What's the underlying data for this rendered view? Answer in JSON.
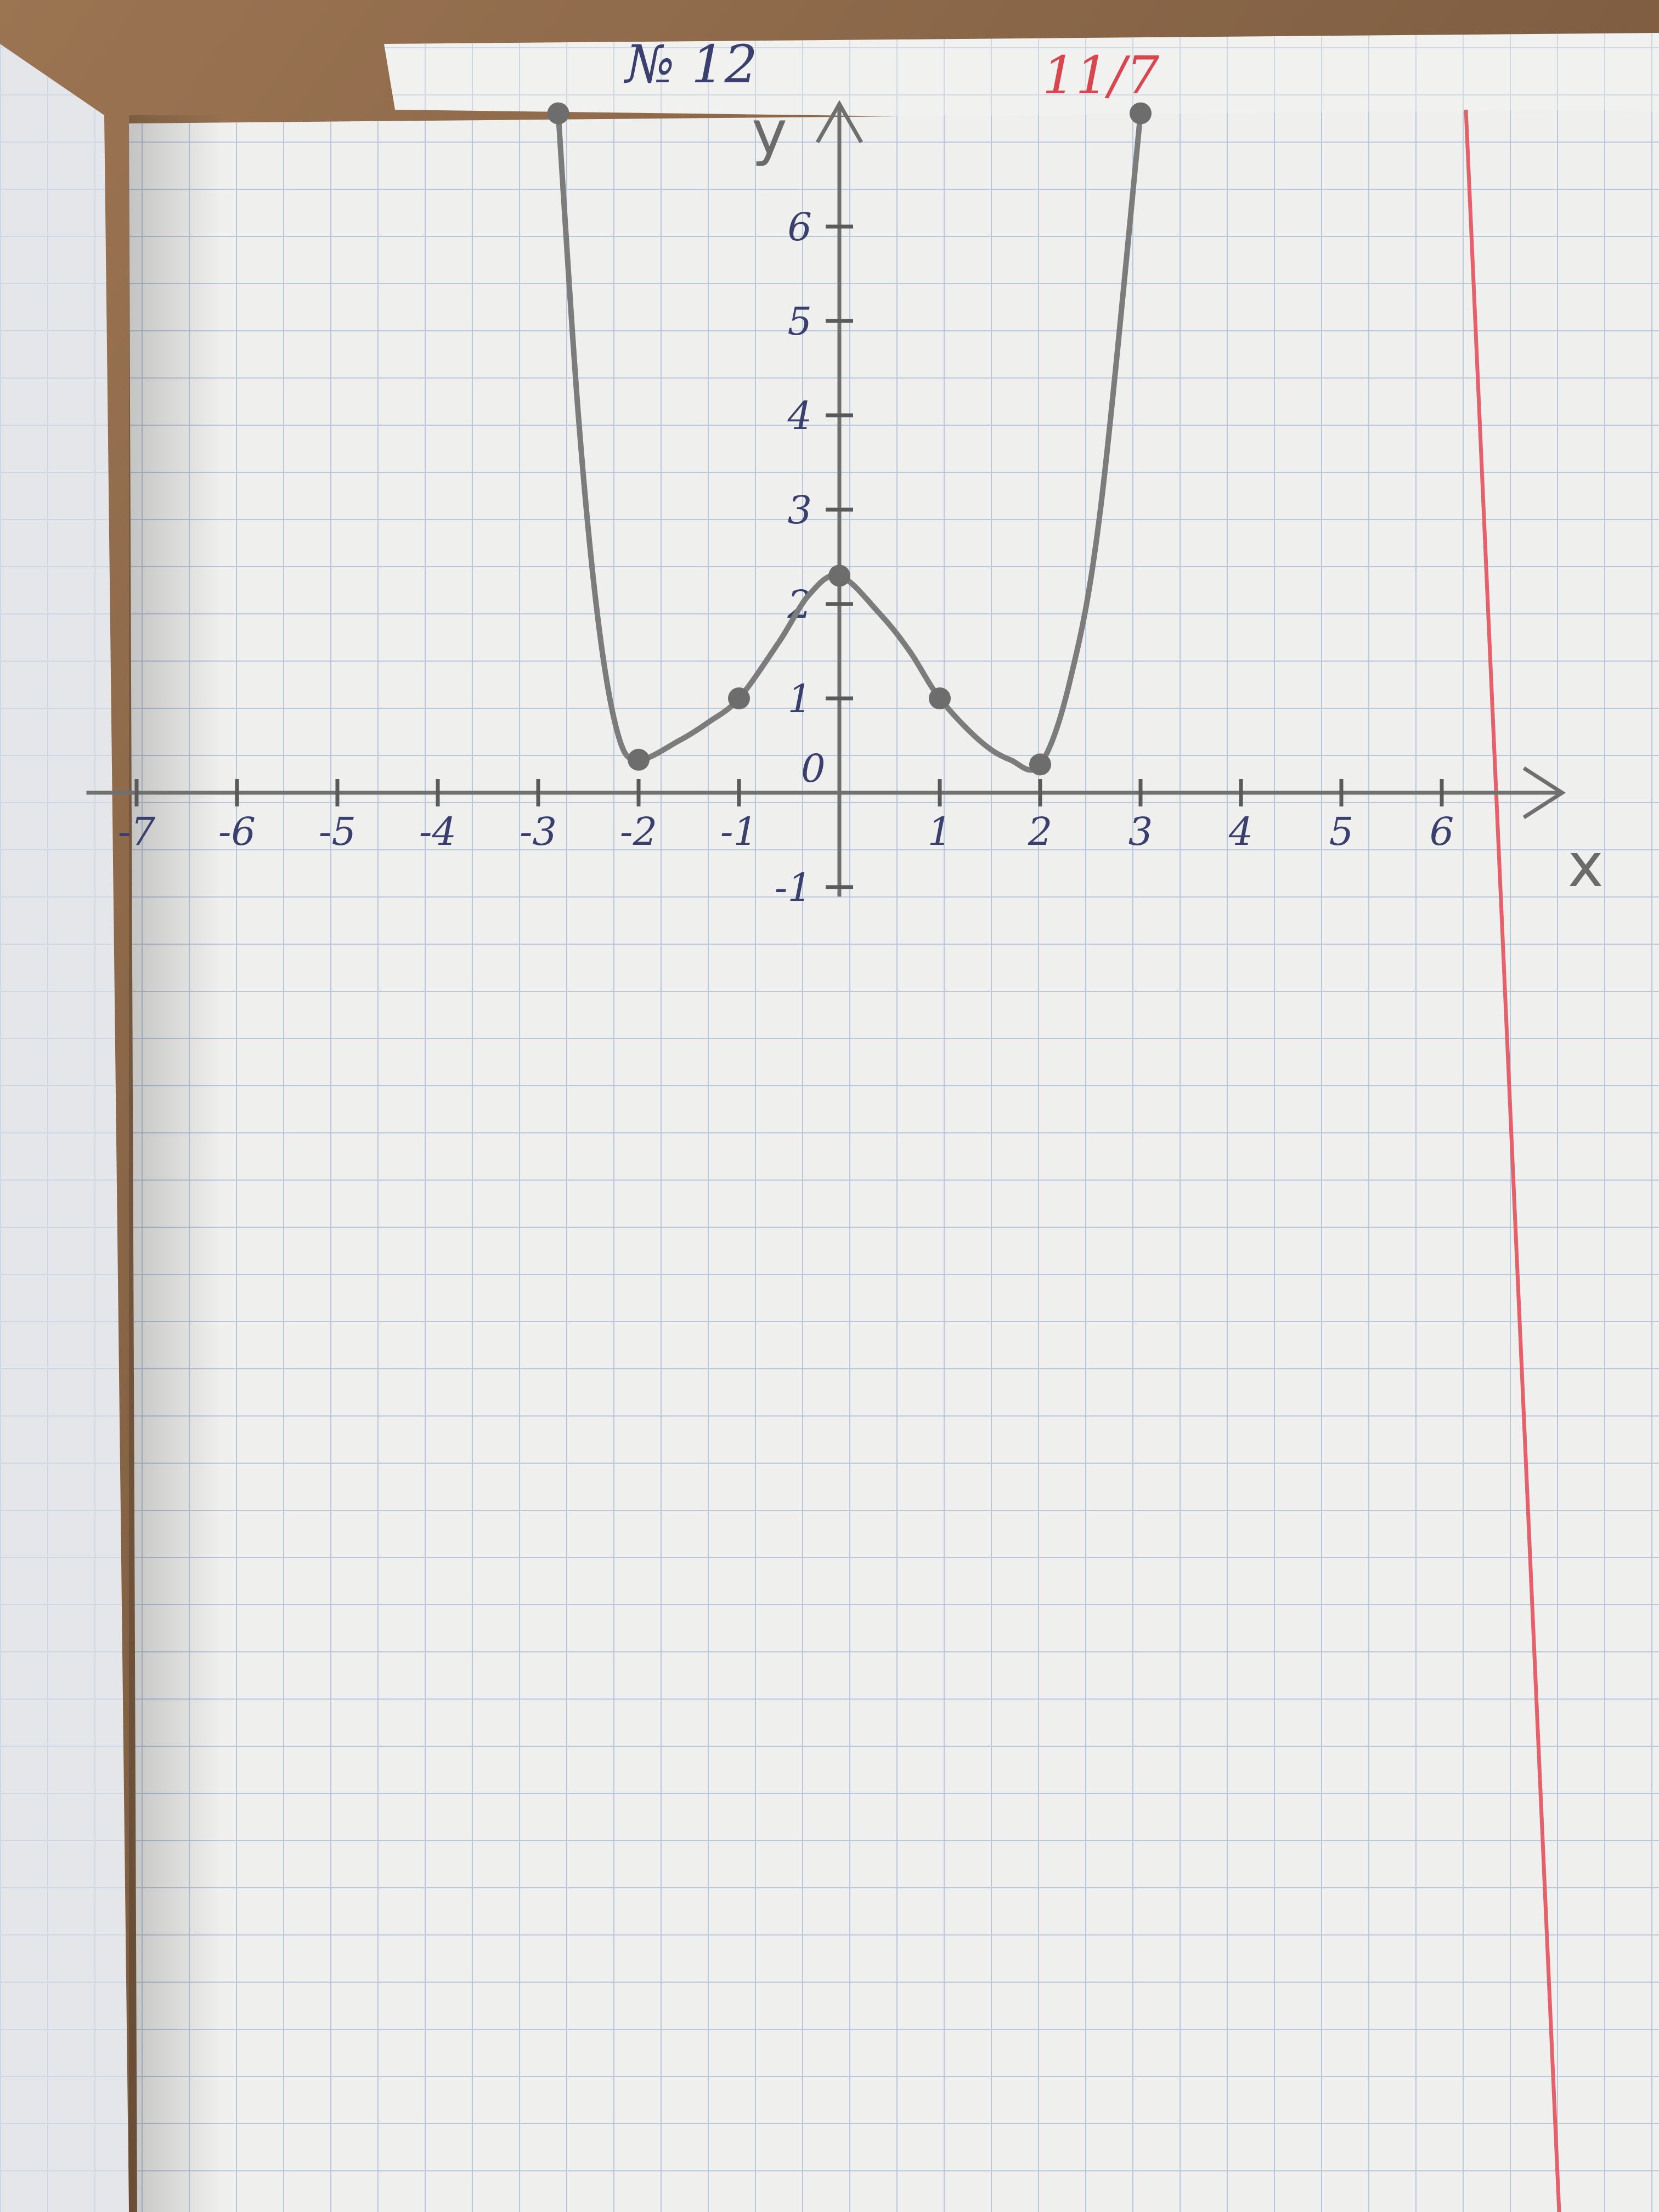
{
  "header": {
    "left_mark": "№ 12",
    "right_mark": "11/7"
  },
  "chart_data": {
    "type": "line",
    "title": "",
    "xlabel": "x",
    "ylabel": "y",
    "origin_label": "0",
    "xlim": [
      -7,
      6
    ],
    "ylim": [
      -1,
      7
    ],
    "grid": true,
    "x_ticks": [
      -7,
      -6,
      -5,
      -4,
      -3,
      -2,
      -1,
      1,
      2,
      3,
      4,
      5,
      6
    ],
    "x_tick_labels": [
      "-7",
      "-6",
      "-5",
      "-4",
      "-3",
      "-2",
      "-1",
      "1",
      "2",
      "3",
      "4",
      "5",
      "6"
    ],
    "y_ticks": [
      -1,
      1,
      2,
      3,
      4,
      5,
      6
    ],
    "y_tick_labels": [
      "-1",
      "1",
      "2",
      "3",
      "4",
      "5",
      "6"
    ],
    "series": [
      {
        "x": [
          -2.8,
          -2.6,
          -2.4,
          -2.2,
          -2,
          -1.6,
          -1.3,
          -1,
          -0.6,
          -0.3,
          0,
          0.4,
          0.7,
          1,
          1.4,
          1.7,
          2,
          2.3,
          2.6,
          3
        ],
        "y": [
          7.2,
          4.0,
          1.8,
          0.6,
          0.35,
          0.55,
          0.75,
          1.0,
          1.6,
          2.1,
          2.3,
          1.9,
          1.5,
          1.0,
          0.55,
          0.35,
          0.3,
          1.2,
          3.0,
          7.2
        ],
        "color": "#7c7c7c"
      }
    ],
    "marked_points": [
      {
        "x": -2.8,
        "y": 7.2
      },
      {
        "x": -2,
        "y": 0.35
      },
      {
        "x": -1,
        "y": 1
      },
      {
        "x": 0,
        "y": 2.3
      },
      {
        "x": 1,
        "y": 1
      },
      {
        "x": 2,
        "y": 0.3
      },
      {
        "x": 3,
        "y": 7.2
      }
    ]
  }
}
